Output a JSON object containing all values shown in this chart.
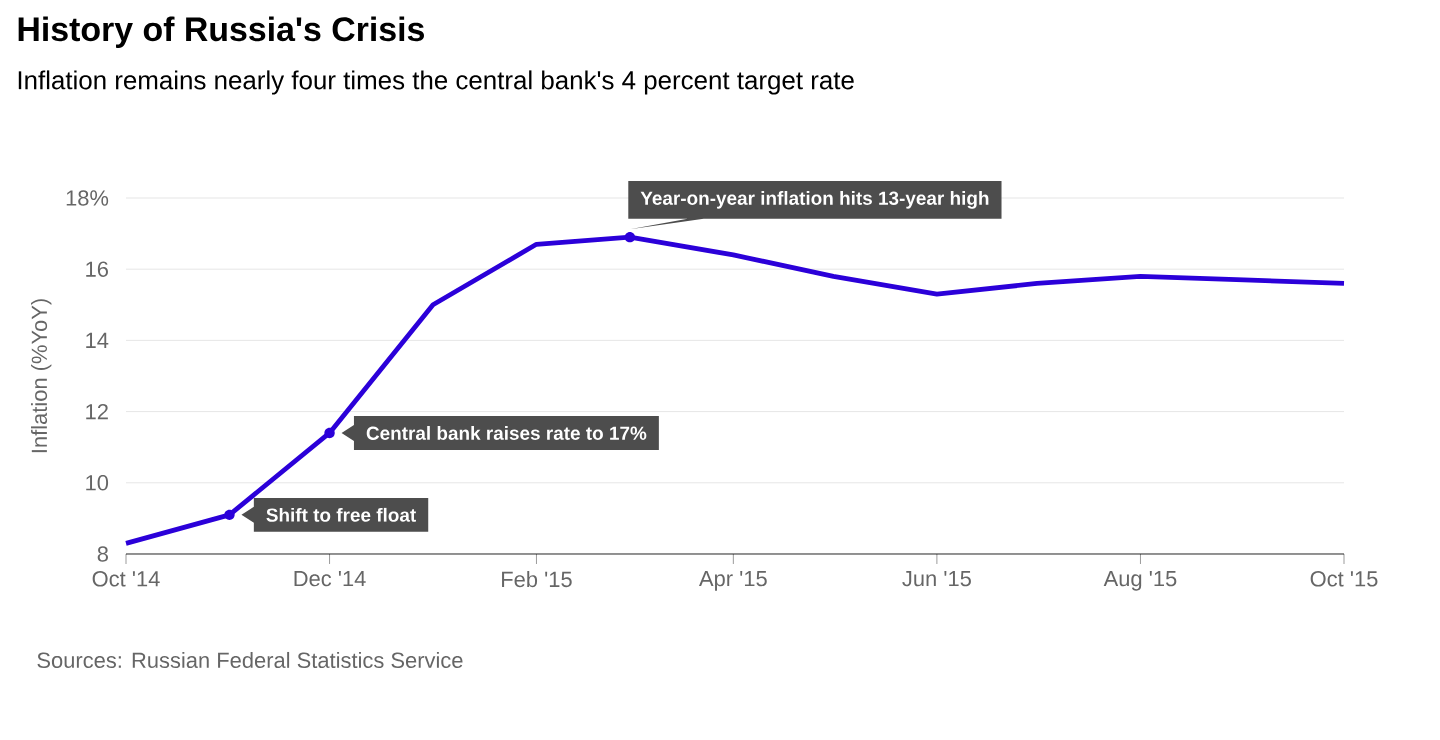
{
  "chart_data": {
    "type": "line",
    "title": "History of Russia's Crisis",
    "subtitle": "Inflation remains nearly four times the central bank's 4 percent target rate",
    "ylabel": "Inflation (%YoY)",
    "x": [
      "2014-10",
      "2014-11",
      "2014-12",
      "2015-01",
      "2015-02",
      "2015-03",
      "2015-04",
      "2015-05",
      "2015-06",
      "2015-07",
      "2015-08",
      "2015-09",
      "2015-10"
    ],
    "values": [
      8.3,
      9.1,
      11.4,
      15.0,
      16.7,
      16.9,
      16.4,
      15.8,
      15.3,
      15.6,
      15.8,
      15.7,
      15.6
    ],
    "color": "#2b00d9",
    "xlim": [
      "2014-10",
      "2015-10"
    ],
    "xticks": [
      {
        "value": "2014-10",
        "label": "Oct '14"
      },
      {
        "value": "2014-12",
        "label": "Dec '14"
      },
      {
        "value": "2015-02",
        "label": "Feb '15"
      },
      {
        "value": "2015-04",
        "label": "Apr '15"
      },
      {
        "value": "2015-06",
        "label": "Jun '15"
      },
      {
        "value": "2015-08",
        "label": "Aug '15"
      },
      {
        "value": "2015-10",
        "label": "Oct '15"
      }
    ],
    "ylim": [
      8,
      18
    ],
    "yticks": [
      8,
      10,
      12,
      14,
      16,
      {
        "value": 18,
        "label": "18%"
      }
    ],
    "grid": "y",
    "annotations": [
      {
        "text": "Shift to free float",
        "x": "2014-11",
        "y": 9.1
      },
      {
        "text": "Central bank raises rate to 17%",
        "x": "2014-12",
        "y": 11.4
      },
      {
        "text": "Year-on-year inflation hits 13-year high",
        "x": "2015-03",
        "y": 16.9
      },
      "Sources: Russian Federal Statistics Service"
    ]
  }
}
